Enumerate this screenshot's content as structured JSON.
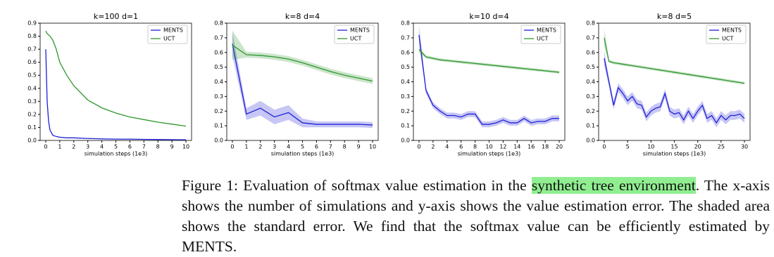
{
  "chart_data": [
    {
      "type": "line",
      "title": "k=100 d=1",
      "xlabel": "simulation steps (1e3)",
      "legend": "upper right",
      "x": [
        0,
        0.1,
        0.2,
        0.3,
        0.5,
        0.75,
        1,
        1.5,
        2,
        3,
        4,
        5,
        6,
        7,
        8,
        9,
        10
      ],
      "xlim": [
        -0.4,
        10.4
      ],
      "xticks": [
        0,
        1,
        2,
        3,
        4,
        5,
        6,
        7,
        8,
        9,
        10
      ],
      "ylim": [
        0,
        0.9
      ],
      "yticks": [
        {
          "value": 0,
          "label": "0.0"
        },
        0.1,
        0.2,
        0.3,
        0.4,
        0.5,
        0.6,
        0.7,
        0.8,
        0.9
      ],
      "series": [
        {
          "name": "MENTS",
          "color": "#1f1fd8",
          "values": [
            0.7,
            0.3,
            0.15,
            0.08,
            0.04,
            0.03,
            0.025,
            0.02,
            0.02,
            0.015,
            0.012,
            0.01,
            0.01,
            0.008,
            0.007,
            0.006,
            0.005
          ]
        },
        {
          "name": "UCT",
          "color": "#2e962e",
          "values": [
            0.84,
            0.82,
            0.81,
            0.8,
            0.77,
            0.7,
            0.6,
            0.5,
            0.42,
            0.31,
            0.25,
            0.21,
            0.18,
            0.16,
            0.14,
            0.125,
            0.11
          ]
        }
      ]
    },
    {
      "type": "line",
      "title": "k=8 d=4",
      "xlabel": "simulation steps (1e3)",
      "legend": "upper right",
      "x": [
        0,
        1,
        2,
        3,
        4,
        5,
        6,
        7,
        8,
        9,
        10
      ],
      "xlim": [
        -0.4,
        10.4
      ],
      "xticks": [
        0,
        1,
        2,
        3,
        4,
        5,
        6,
        7,
        8,
        9,
        10
      ],
      "ylim": [
        0,
        0.8
      ],
      "yticks": [
        {
          "value": 0,
          "label": "0.0"
        },
        0.1,
        0.2,
        0.3,
        0.4,
        0.5,
        0.6,
        0.7,
        0.8
      ],
      "series": [
        {
          "name": "MENTS",
          "color": "#1f1fd8",
          "values": [
            0.66,
            0.18,
            0.22,
            0.16,
            0.19,
            0.12,
            0.11,
            0.11,
            0.11,
            0.11,
            0.105
          ],
          "error": [
            0.08,
            0.04,
            0.05,
            0.05,
            0.05,
            0.03,
            0.02,
            0.02,
            0.02,
            0.02,
            0.02
          ]
        },
        {
          "name": "UCT",
          "color": "#2e962e",
          "values": [
            0.65,
            0.585,
            0.58,
            0.57,
            0.555,
            0.53,
            0.5,
            0.47,
            0.445,
            0.425,
            0.405
          ],
          "error": [
            0.1,
            0.02,
            0.02,
            0.02,
            0.02,
            0.02,
            0.02,
            0.02,
            0.02,
            0.02,
            0.02
          ]
        }
      ]
    },
    {
      "type": "line",
      "title": "k=10 d=4",
      "xlabel": "simulation steps (1e3)",
      "legend": "upper right",
      "x": [
        0,
        1,
        2,
        3,
        4,
        5,
        6,
        7,
        8,
        9,
        10,
        11,
        12,
        13,
        14,
        15,
        16,
        17,
        18,
        19,
        20
      ],
      "xlim": [
        -0.8,
        20.8
      ],
      "xticks": [
        0,
        2,
        4,
        6,
        8,
        10,
        12,
        14,
        16,
        18,
        20
      ],
      "ylim": [
        0,
        0.8
      ],
      "yticks": [
        {
          "value": 0,
          "label": "0.0"
        },
        0.1,
        0.2,
        0.3,
        0.4,
        0.5,
        0.6,
        0.7,
        0.8
      ],
      "series": [
        {
          "name": "MENTS",
          "color": "#1f1fd8",
          "values": [
            0.72,
            0.34,
            0.24,
            0.2,
            0.17,
            0.17,
            0.16,
            0.18,
            0.18,
            0.11,
            0.11,
            0.12,
            0.14,
            0.12,
            0.12,
            0.15,
            0.12,
            0.13,
            0.13,
            0.15,
            0.15
          ],
          "error": [
            0.06,
            0.02,
            0.02,
            0.02,
            0.02,
            0.02,
            0.02,
            0.02,
            0.02,
            0.02,
            0.02,
            0.02,
            0.02,
            0.02,
            0.02,
            0.02,
            0.02,
            0.02,
            0.02,
            0.02,
            0.02
          ]
        },
        {
          "name": "UCT",
          "color": "#2e962e",
          "values": [
            0.62,
            0.57,
            0.56,
            0.55,
            0.545,
            0.54,
            0.535,
            0.53,
            0.525,
            0.52,
            0.515,
            0.51,
            0.505,
            0.5,
            0.495,
            0.49,
            0.485,
            0.48,
            0.475,
            0.47,
            0.465
          ],
          "error": [
            0.02,
            0.01,
            0.01,
            0.01,
            0.01,
            0.01,
            0.01,
            0.01,
            0.01,
            0.01,
            0.01,
            0.01,
            0.01,
            0.01,
            0.01,
            0.01,
            0.01,
            0.01,
            0.01,
            0.01,
            0.01
          ]
        }
      ]
    },
    {
      "type": "line",
      "title": "k=8 d=5",
      "xlabel": "simulation steps (1e3)",
      "legend": "upper right",
      "x": [
        0,
        1,
        2,
        3,
        4,
        5,
        6,
        7,
        8,
        9,
        10,
        11,
        12,
        13,
        14,
        15,
        16,
        17,
        18,
        19,
        20,
        21,
        22,
        23,
        24,
        25,
        26,
        27,
        28,
        29,
        30
      ],
      "xlim": [
        -1.2,
        31.2
      ],
      "xticks": [
        0,
        5,
        10,
        15,
        20,
        25,
        30
      ],
      "ylim": [
        0,
        0.8
      ],
      "yticks": [
        {
          "value": 0,
          "label": "0.0"
        },
        0.1,
        0.2,
        0.3,
        0.4,
        0.5,
        0.6,
        0.7,
        0.8
      ],
      "series": [
        {
          "name": "MENTS",
          "color": "#1f1fd8",
          "values": [
            0.56,
            0.4,
            0.24,
            0.36,
            0.32,
            0.27,
            0.3,
            0.25,
            0.24,
            0.16,
            0.2,
            0.22,
            0.23,
            0.32,
            0.2,
            0.18,
            0.19,
            0.14,
            0.2,
            0.15,
            0.2,
            0.24,
            0.15,
            0.17,
            0.12,
            0.17,
            0.14,
            0.17,
            0.17,
            0.18,
            0.15
          ],
          "error": [
            0.05,
            0.03,
            0.03,
            0.03,
            0.03,
            0.03,
            0.03,
            0.03,
            0.03,
            0.03,
            0.03,
            0.03,
            0.03,
            0.03,
            0.03,
            0.03,
            0.03,
            0.03,
            0.03,
            0.03,
            0.03,
            0.03,
            0.03,
            0.03,
            0.03,
            0.03,
            0.03,
            0.03,
            0.03,
            0.03,
            0.03
          ]
        },
        {
          "name": "UCT",
          "color": "#2e962e",
          "values": [
            0.7,
            0.54,
            0.53,
            0.525,
            0.52,
            0.515,
            0.51,
            0.505,
            0.5,
            0.495,
            0.49,
            0.485,
            0.48,
            0.475,
            0.47,
            0.465,
            0.46,
            0.455,
            0.45,
            0.445,
            0.44,
            0.435,
            0.43,
            0.425,
            0.42,
            0.415,
            0.41,
            0.405,
            0.4,
            0.395,
            0.39
          ],
          "error": [
            0.06,
            0.01,
            0.01,
            0.01,
            0.01,
            0.01,
            0.01,
            0.01,
            0.01,
            0.01,
            0.01,
            0.01,
            0.01,
            0.01,
            0.01,
            0.01,
            0.01,
            0.01,
            0.01,
            0.01,
            0.01,
            0.01,
            0.01,
            0.01,
            0.01,
            0.01,
            0.01,
            0.01,
            0.01,
            0.01,
            0.01
          ]
        }
      ]
    }
  ],
  "caption": {
    "parts": [
      "Figure 1: Evaluation of softmax value estimation in the ",
      "synthetic tree environment",
      ". The x-axis shows the number of simulations and y-axis shows the value estimation error. The shaded area shows the standard error. We find that the softmax value can be efficiently estimated by MENTS."
    ]
  }
}
